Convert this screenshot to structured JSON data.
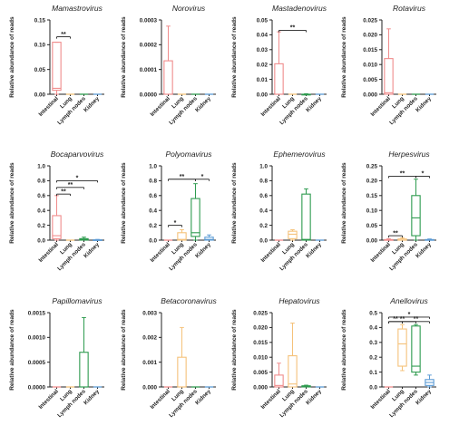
{
  "colors": {
    "Intestinal": "#f08c8c",
    "Lung": "#f5c27a",
    "Lymph nodes": "#2e9b4f",
    "Kidney": "#5b9bd5",
    "axis": "#222222"
  },
  "chart_data": [
    {
      "type": "box",
      "title": "Mamastrovirus",
      "ylabel": "Relative abundance of reads",
      "categories": [
        "Intestinal",
        "Lung",
        "Lymph nodes",
        "Kidney"
      ],
      "yticks": [
        "0.00",
        "0.05",
        "0.10",
        "0.15"
      ],
      "ylim": [
        0,
        0.15
      ],
      "boxes": [
        {
          "min": 0,
          "q1": 0.008,
          "median": 0.012,
          "q3": 0.105,
          "max": 0.105
        },
        {
          "min": 0,
          "q1": 0,
          "median": 0,
          "q3": 0,
          "max": 0
        },
        {
          "min": 0,
          "q1": 0,
          "median": 0,
          "q3": 0,
          "max": 0
        },
        {
          "min": 0,
          "q1": 0,
          "median": 0,
          "q3": 0,
          "max": 0
        }
      ],
      "significance": [
        {
          "from": 0,
          "to": 1,
          "level": 0.116,
          "label": "**"
        }
      ]
    },
    {
      "type": "box",
      "title": "Norovirus",
      "ylabel": "Relative abundance of reads",
      "categories": [
        "Intestinal",
        "Lung",
        "Lymph nodes",
        "Kidney"
      ],
      "yticks": [
        "0.0000",
        "0.0001",
        "0.0002",
        "0.0003"
      ],
      "ylim": [
        0,
        0.0003
      ],
      "boxes": [
        {
          "min": 0,
          "q1": 0,
          "median": 0,
          "q3": 0.000135,
          "max": 0.000275
        },
        {
          "min": 0,
          "q1": 0,
          "median": 0,
          "q3": 0,
          "max": 0
        },
        {
          "min": 0,
          "q1": 0,
          "median": 0,
          "q3": 0,
          "max": 0
        },
        {
          "min": 0,
          "q1": 0,
          "median": 0,
          "q3": 0,
          "max": 0
        }
      ],
      "significance": []
    },
    {
      "type": "box",
      "title": "Mastadenovirus",
      "ylabel": "Relative abundance of reads",
      "categories": [
        "Intestinal",
        "Lung",
        "Lymph nodes",
        "Kidney"
      ],
      "yticks": [
        "0.00",
        "0.01",
        "0.02",
        "0.03",
        "0.04",
        "0.05"
      ],
      "ylim": [
        0,
        0.05
      ],
      "boxes": [
        {
          "min": 0,
          "q1": 0,
          "median": 0,
          "q3": 0.0205,
          "max": 0.042
        },
        {
          "min": 0,
          "q1": 0,
          "median": 0,
          "q3": 0,
          "max": 0
        },
        {
          "min": 0,
          "q1": 0,
          "median": 0,
          "q3": 0,
          "max": 0.0003
        },
        {
          "min": 0,
          "q1": 0,
          "median": 0,
          "q3": 0,
          "max": 0
        }
      ],
      "significance": [
        {
          "from": 0,
          "to": 2,
          "level": 0.043,
          "label": "**"
        }
      ]
    },
    {
      "type": "box",
      "title": "Rotavirus",
      "ylabel": "Relative abundance of reads",
      "categories": [
        "Intestinal",
        "Lung",
        "Lymph nodes",
        "Kidney"
      ],
      "yticks": [
        "0.000",
        "0.005",
        "0.010",
        "0.015",
        "0.020",
        "0.025"
      ],
      "ylim": [
        0,
        0.025
      ],
      "boxes": [
        {
          "min": 0,
          "q1": 0,
          "median": 0.0005,
          "q3": 0.012,
          "max": 0.022
        },
        {
          "min": 0,
          "q1": 0,
          "median": 0,
          "q3": 0,
          "max": 0
        },
        {
          "min": 0,
          "q1": 0,
          "median": 0,
          "q3": 0,
          "max": 0
        },
        {
          "min": 0,
          "q1": 0,
          "median": 0,
          "q3": 0,
          "max": 0
        }
      ],
      "significance": []
    },
    {
      "type": "box",
      "title": "Bocaparvovirus",
      "ylabel": "Relative abundance of reads",
      "categories": [
        "Intestinal",
        "Lung",
        "Lymph nodes",
        "Kidney"
      ],
      "yticks": [
        "0.0",
        "0.2",
        "0.4",
        "0.6",
        "0.8",
        "1.0"
      ],
      "ylim": [
        0,
        1.0
      ],
      "boxes": [
        {
          "min": 0,
          "q1": 0.02,
          "median": 0.06,
          "q3": 0.33,
          "max": 0.6
        },
        {
          "min": 0,
          "q1": 0,
          "median": 0,
          "q3": 0,
          "max": 0
        },
        {
          "min": 0,
          "q1": 0,
          "median": 0.01,
          "q3": 0.02,
          "max": 0.04
        },
        {
          "min": 0,
          "q1": 0,
          "median": 0,
          "q3": 0.005,
          "max": 0.01
        }
      ],
      "significance": [
        {
          "from": 0,
          "to": 1,
          "level": 0.62,
          "label": "**"
        },
        {
          "from": 0,
          "to": 2,
          "level": 0.71,
          "label": "**"
        },
        {
          "from": 0,
          "to": 3,
          "level": 0.8,
          "label": "*"
        }
      ]
    },
    {
      "type": "box",
      "title": "Polyomavirus",
      "ylabel": "Relative abundance of reads",
      "categories": [
        "Intestinal",
        "Lung",
        "Lymph nodes",
        "Kidney"
      ],
      "yticks": [
        "0.0",
        "0.2",
        "0.4",
        "0.6",
        "0.8",
        "1.0"
      ],
      "ylim": [
        0,
        1.0
      ],
      "boxes": [
        {
          "min": 0,
          "q1": 0,
          "median": 0,
          "q3": 0,
          "max": 0
        },
        {
          "min": 0,
          "q1": 0,
          "median": 0.01,
          "q3": 0.1,
          "max": 0.14
        },
        {
          "min": 0,
          "q1": 0.05,
          "median": 0.1,
          "q3": 0.56,
          "max": 0.76
        },
        {
          "min": 0,
          "q1": 0,
          "median": 0.01,
          "q3": 0.04,
          "max": 0.07
        }
      ],
      "significance": [
        {
          "from": 0,
          "to": 1,
          "level": 0.2,
          "label": "*"
        },
        {
          "from": 0,
          "to": 2,
          "level": 0.82,
          "label": "**"
        },
        {
          "from": 2,
          "to": 3,
          "level": 0.82,
          "label": "*"
        }
      ]
    },
    {
      "type": "box",
      "title": "Ephemerovirus",
      "ylabel": "Relative abundance of reads",
      "categories": [
        "Intestinal",
        "Lung",
        "Lymph nodes",
        "Kidney"
      ],
      "yticks": [
        "0.0",
        "0.2",
        "0.4",
        "0.6",
        "0.8",
        "1.0"
      ],
      "ylim": [
        0,
        1.0
      ],
      "boxes": [
        {
          "min": 0,
          "q1": 0,
          "median": 0,
          "q3": 0,
          "max": 0
        },
        {
          "min": 0,
          "q1": 0.02,
          "median": 0.08,
          "q3": 0.12,
          "max": 0.14
        },
        {
          "min": 0,
          "q1": 0,
          "median": 0.01,
          "q3": 0.62,
          "max": 0.69
        },
        {
          "min": 0,
          "q1": 0,
          "median": 0,
          "q3": 0,
          "max": 0
        }
      ],
      "significance": []
    },
    {
      "type": "box",
      "title": "Herpesvirus",
      "ylabel": "Relative abundance of reads",
      "categories": [
        "Intestinal",
        "Lung",
        "Lymph nodes",
        "Kidney"
      ],
      "yticks": [
        "0.00",
        "0.05",
        "0.10",
        "0.15",
        "0.20",
        "0.25"
      ],
      "ylim": [
        0,
        0.25
      ],
      "boxes": [
        {
          "min": 0,
          "q1": 0,
          "median": 0,
          "q3": 0.002,
          "max": 0.005
        },
        {
          "min": 0,
          "q1": 0,
          "median": 0,
          "q3": 0.004,
          "max": 0.008
        },
        {
          "min": 0,
          "q1": 0.015,
          "median": 0.075,
          "q3": 0.15,
          "max": 0.205
        },
        {
          "min": 0,
          "q1": 0,
          "median": 0,
          "q3": 0.002,
          "max": 0.004
        }
      ],
      "significance": [
        {
          "from": 0,
          "to": 1,
          "level": 0.015,
          "label": "**"
        },
        {
          "from": 0,
          "to": 2,
          "level": 0.215,
          "label": "**"
        },
        {
          "from": 2,
          "to": 3,
          "level": 0.215,
          "label": "*"
        }
      ]
    },
    {
      "type": "box",
      "title": "Papillomavirus",
      "ylabel": "Relative abundance of reads",
      "categories": [
        "Intestinal",
        "Lung",
        "Lymph nodes",
        "Kidney"
      ],
      "yticks": [
        "0.0000",
        "0.0005",
        "0.0010",
        "0.0015"
      ],
      "ylim": [
        0,
        0.0015
      ],
      "boxes": [
        {
          "min": 0,
          "q1": 0,
          "median": 0,
          "q3": 0,
          "max": 0
        },
        {
          "min": 0,
          "q1": 0,
          "median": 0,
          "q3": 0,
          "max": 0
        },
        {
          "min": 0,
          "q1": 0,
          "median": 0,
          "q3": 0.0007,
          "max": 0.0014
        },
        {
          "min": 0,
          "q1": 0,
          "median": 0,
          "q3": 0,
          "max": 0
        }
      ],
      "significance": []
    },
    {
      "type": "box",
      "title": "Betacoronavirus",
      "ylabel": "Relative abundance of reads",
      "categories": [
        "Intestinal",
        "Lung",
        "Lymph nodes",
        "Kidney"
      ],
      "yticks": [
        "0.000",
        "0.001",
        "0.002",
        "0.003"
      ],
      "ylim": [
        0,
        0.003
      ],
      "boxes": [
        {
          "min": 0,
          "q1": 0,
          "median": 0,
          "q3": 0,
          "max": 0
        },
        {
          "min": 0,
          "q1": 0,
          "median": 0,
          "q3": 0.0012,
          "max": 0.0024
        },
        {
          "min": 0,
          "q1": 0,
          "median": 0,
          "q3": 0,
          "max": 0
        },
        {
          "min": 0,
          "q1": 0,
          "median": 0,
          "q3": 0,
          "max": 0
        }
      ],
      "significance": []
    },
    {
      "type": "box",
      "title": "Hepatovirus",
      "ylabel": "Relative abundance of reads",
      "categories": [
        "Intestinal",
        "Lung",
        "Lymph nodes",
        "Kidney"
      ],
      "yticks": [
        "0.000",
        "0.005",
        "0.010",
        "0.015",
        "0.020",
        "0.025"
      ],
      "ylim": [
        0,
        0.025
      ],
      "boxes": [
        {
          "min": 0,
          "q1": 0,
          "median": 0.0005,
          "q3": 0.004,
          "max": 0.008
        },
        {
          "min": 0,
          "q1": 0,
          "median": 0.001,
          "q3": 0.0105,
          "max": 0.0215
        },
        {
          "min": 0,
          "q1": 0,
          "median": 0.0002,
          "q3": 0.0004,
          "max": 0.0006
        },
        {
          "min": 0,
          "q1": 0,
          "median": 0,
          "q3": 0,
          "max": 0
        }
      ],
      "significance": []
    },
    {
      "type": "box",
      "title": "Anellovirus",
      "ylabel": "Relative abundance of reads",
      "categories": [
        "Intestinal",
        "Lung",
        "Lymph nodes",
        "Kidney"
      ],
      "yticks": [
        "0.0",
        "0.1",
        "0.2",
        "0.3",
        "0.4",
        "0.5"
      ],
      "ylim": [
        0,
        0.5
      ],
      "boxes": [
        {
          "min": 0,
          "q1": 0,
          "median": 0,
          "q3": 0,
          "max": 0
        },
        {
          "min": 0.11,
          "q1": 0.14,
          "median": 0.29,
          "q3": 0.39,
          "max": 0.42
        },
        {
          "min": 0.08,
          "q1": 0.1,
          "median": 0.14,
          "q3": 0.41,
          "max": 0.42
        },
        {
          "min": 0,
          "q1": 0.01,
          "median": 0.03,
          "q3": 0.05,
          "max": 0.08
        }
      ],
      "significance": [
        {
          "from": 0,
          "to": 1,
          "level": 0.44,
          "label": "**"
        },
        {
          "from": 0,
          "to": 3,
          "level": 0.47,
          "label": "*"
        },
        {
          "from": 1,
          "to": 3,
          "level": 0.44,
          "label": "**"
        },
        {
          "from": 0,
          "to": 2,
          "level": 0.44,
          "label": "**"
        }
      ]
    }
  ]
}
